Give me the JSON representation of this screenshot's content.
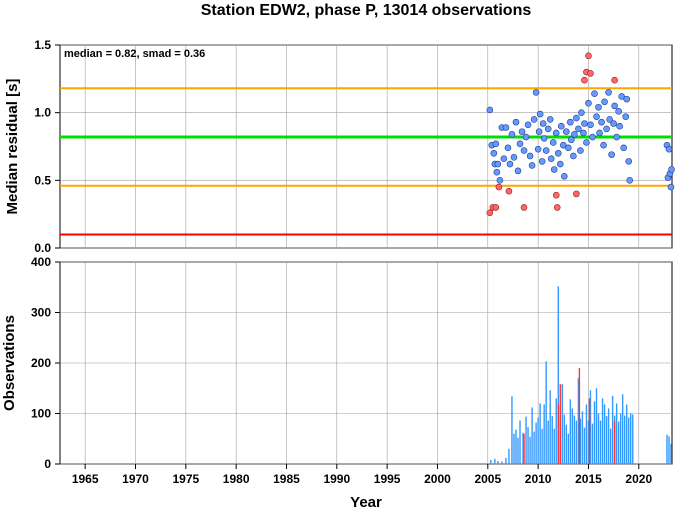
{
  "chart_data": {
    "title": "Station EDW2, phase P, 13014 observations",
    "xlabel": "Year",
    "x_ticks": [
      1965,
      1970,
      1975,
      1980,
      1985,
      1990,
      1995,
      2000,
      2005,
      2010,
      2015,
      2020
    ],
    "xlim": [
      1962.5,
      2023.3
    ],
    "colors": {
      "inlier": "#6699ff",
      "outlier": "#ff6666",
      "median_line": "#00dd00",
      "smad_lines": "#ffa500",
      "threshold_line": "#ff0000",
      "bars": "#3399ff",
      "bars_highlight": "#ff3333"
    },
    "panels": [
      {
        "type": "scatter",
        "ylabel": "Median residual [s]",
        "ylim": [
          0,
          1.5
        ],
        "y_ticks": [
          "0.0",
          "0.5",
          "1.0",
          "1.5"
        ],
        "stats_text": "median = 0.82, smad = 0.36",
        "reference_lines": {
          "median": 0.82,
          "upper": 1.18,
          "lower": 0.46,
          "threshold": 0.1
        },
        "series": [
          {
            "role": "inliers",
            "points": [
              [
                2005.2,
                1.02
              ],
              [
                2005.4,
                0.76
              ],
              [
                2005.6,
                0.7
              ],
              [
                2005.7,
                0.62
              ],
              [
                2005.8,
                0.77
              ],
              [
                2005.9,
                0.56
              ],
              [
                2006.0,
                0.62
              ],
              [
                2006.2,
                0.5
              ],
              [
                2006.4,
                0.89
              ],
              [
                2006.6,
                0.66
              ],
              [
                2006.8,
                0.89
              ],
              [
                2007.0,
                0.74
              ],
              [
                2007.2,
                0.62
              ],
              [
                2007.4,
                0.84
              ],
              [
                2007.6,
                0.67
              ],
              [
                2007.8,
                0.93
              ],
              [
                2008.0,
                0.57
              ],
              [
                2008.2,
                0.77
              ],
              [
                2008.4,
                0.86
              ],
              [
                2008.6,
                0.72
              ],
              [
                2008.8,
                0.82
              ],
              [
                2009.0,
                0.91
              ],
              [
                2009.2,
                0.68
              ],
              [
                2009.4,
                0.61
              ],
              [
                2009.6,
                0.95
              ],
              [
                2009.8,
                1.15
              ],
              [
                2010.0,
                0.73
              ],
              [
                2010.1,
                0.86
              ],
              [
                2010.2,
                0.99
              ],
              [
                2010.4,
                0.64
              ],
              [
                2010.5,
                0.92
              ],
              [
                2010.6,
                0.81
              ],
              [
                2010.8,
                0.72
              ],
              [
                2011.0,
                0.88
              ],
              [
                2011.2,
                0.95
              ],
              [
                2011.3,
                0.66
              ],
              [
                2011.5,
                0.78
              ],
              [
                2011.6,
                0.58
              ],
              [
                2011.8,
                0.85
              ],
              [
                2012.0,
                0.7
              ],
              [
                2012.2,
                0.62
              ],
              [
                2012.3,
                0.9
              ],
              [
                2012.5,
                0.76
              ],
              [
                2012.6,
                0.53
              ],
              [
                2012.8,
                0.86
              ],
              [
                2013.0,
                0.74
              ],
              [
                2013.2,
                0.93
              ],
              [
                2013.3,
                0.8
              ],
              [
                2013.5,
                0.68
              ],
              [
                2013.6,
                0.84
              ],
              [
                2013.8,
                0.96
              ],
              [
                2014.0,
                0.88
              ],
              [
                2014.2,
                0.72
              ],
              [
                2014.3,
                1.0
              ],
              [
                2014.5,
                0.85
              ],
              [
                2014.6,
                0.92
              ],
              [
                2014.8,
                0.78
              ],
              [
                2015.0,
                1.07
              ],
              [
                2015.2,
                0.91
              ],
              [
                2015.4,
                0.82
              ],
              [
                2015.6,
                1.14
              ],
              [
                2015.8,
                0.97
              ],
              [
                2016.0,
                1.04
              ],
              [
                2016.1,
                0.85
              ],
              [
                2016.3,
                0.93
              ],
              [
                2016.5,
                0.76
              ],
              [
                2016.6,
                1.08
              ],
              [
                2016.8,
                0.88
              ],
              [
                2017.0,
                1.15
              ],
              [
                2017.1,
                0.95
              ],
              [
                2017.3,
                0.69
              ],
              [
                2017.5,
                0.92
              ],
              [
                2017.6,
                1.05
              ],
              [
                2017.8,
                0.82
              ],
              [
                2018.0,
                1.01
              ],
              [
                2018.1,
                0.9
              ],
              [
                2018.3,
                1.12
              ],
              [
                2018.5,
                0.74
              ],
              [
                2018.7,
                0.97
              ],
              [
                2018.8,
                1.1
              ],
              [
                2019.0,
                0.64
              ],
              [
                2019.1,
                0.5
              ],
              [
                2022.8,
                0.76
              ],
              [
                2022.9,
                0.52
              ],
              [
                2023.0,
                0.73
              ],
              [
                2023.1,
                0.55
              ],
              [
                2023.2,
                0.45
              ],
              [
                2023.25,
                0.58
              ]
            ]
          },
          {
            "role": "outliers",
            "points": [
              [
                2005.2,
                0.26
              ],
              [
                2005.5,
                0.3
              ],
              [
                2005.8,
                0.3
              ],
              [
                2006.1,
                0.45
              ],
              [
                2007.1,
                0.42
              ],
              [
                2008.6,
                0.3
              ],
              [
                2011.8,
                0.39
              ],
              [
                2011.9,
                0.3
              ],
              [
                2013.8,
                0.4
              ],
              [
                2014.6,
                1.24
              ],
              [
                2014.8,
                1.3
              ],
              [
                2015.0,
                1.42
              ],
              [
                2015.2,
                1.29
              ],
              [
                2017.6,
                1.24
              ]
            ]
          }
        ]
      },
      {
        "type": "bar",
        "ylabel": "Observations",
        "ylim": [
          0,
          400
        ],
        "y_ticks": [
          "0",
          "100",
          "200",
          "300",
          "400"
        ],
        "bars": [
          [
            2005.3,
            8
          ],
          [
            2005.7,
            10
          ],
          [
            2006.0,
            6
          ],
          [
            2006.4,
            5
          ],
          [
            2006.8,
            12
          ],
          [
            2007.1,
            30
          ],
          [
            2007.4,
            134
          ],
          [
            2007.6,
            60
          ],
          [
            2007.8,
            68
          ],
          [
            2008.0,
            52
          ],
          [
            2008.2,
            86
          ],
          [
            2008.5,
            62
          ],
          [
            2008.8,
            94
          ],
          [
            2009.0,
            73
          ],
          [
            2009.2,
            54
          ],
          [
            2009.4,
            112
          ],
          [
            2009.6,
            64
          ],
          [
            2009.8,
            82
          ],
          [
            2010.0,
            92
          ],
          [
            2010.2,
            120
          ],
          [
            2010.4,
            70
          ],
          [
            2010.6,
            118
          ],
          [
            2010.8,
            203
          ],
          [
            2011.0,
            86
          ],
          [
            2011.2,
            146
          ],
          [
            2011.4,
            95
          ],
          [
            2011.6,
            70
          ],
          [
            2011.8,
            130
          ],
          [
            2012.0,
            352
          ],
          [
            2012.2,
            86
          ],
          [
            2012.4,
            158
          ],
          [
            2012.6,
            98
          ],
          [
            2012.8,
            78
          ],
          [
            2013.0,
            60
          ],
          [
            2013.2,
            128
          ],
          [
            2013.4,
            110
          ],
          [
            2013.6,
            96
          ],
          [
            2013.8,
            86
          ],
          [
            2014.0,
            170
          ],
          [
            2014.2,
            90
          ],
          [
            2014.4,
            104
          ],
          [
            2014.6,
            72
          ],
          [
            2014.8,
            118
          ],
          [
            2015.0,
            86
          ],
          [
            2015.2,
            146
          ],
          [
            2015.4,
            80
          ],
          [
            2015.6,
            124
          ],
          [
            2015.8,
            150
          ],
          [
            2016.0,
            100
          ],
          [
            2016.2,
            86
          ],
          [
            2016.4,
            130
          ],
          [
            2016.6,
            118
          ],
          [
            2016.8,
            95
          ],
          [
            2017.0,
            110
          ],
          [
            2017.2,
            70
          ],
          [
            2017.4,
            135
          ],
          [
            2017.6,
            96
          ],
          [
            2017.8,
            120
          ],
          [
            2018.0,
            84
          ],
          [
            2018.2,
            100
          ],
          [
            2018.4,
            138
          ],
          [
            2018.6,
            96
          ],
          [
            2018.8,
            118
          ],
          [
            2019.0,
            92
          ],
          [
            2019.2,
            100
          ],
          [
            2019.4,
            98
          ],
          [
            2022.8,
            58
          ],
          [
            2023.0,
            55
          ],
          [
            2023.2,
            40
          ]
        ],
        "highlight_bars": [
          [
            2008.6,
            60
          ],
          [
            2012.0,
            120
          ],
          [
            2012.2,
            158
          ],
          [
            2014.1,
            190
          ],
          [
            2015.1,
            130
          ],
          [
            2017.6,
            85
          ]
        ]
      }
    ]
  }
}
